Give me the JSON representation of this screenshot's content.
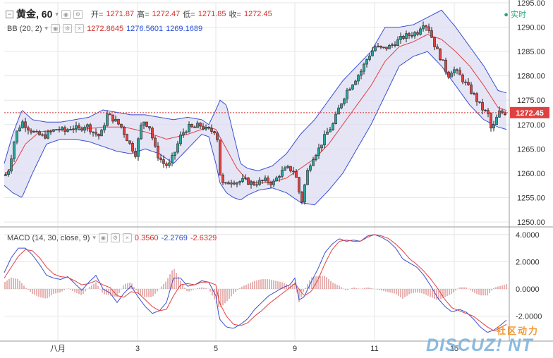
{
  "header": {
    "collapse_icon": "minus-box-icon",
    "symbol": "黄金, 60",
    "open_label": "开=",
    "open_value": "1271.87",
    "high_label": "高=",
    "high_value": "1272.47",
    "low_label": "低=",
    "low_value": "1271.85",
    "close_label": "收=",
    "close_value": "1272.45",
    "realtime": "实时"
  },
  "bb": {
    "label": "BB (20, 2)",
    "mid": "1272.8645",
    "upper": "1276.5601",
    "lower": "1269.1689"
  },
  "macd": {
    "label": "MACD (14, 30, close, 9)",
    "hist": "0.3560",
    "macd": "-2.2769",
    "signal": "-2.6329"
  },
  "price_tag": "1272.45",
  "watermark": {
    "cn": "社区动力",
    "en": "DISCUZ! NT"
  },
  "colors": {
    "up": "#26a69a",
    "down": "#e04040",
    "candle": "#222222",
    "band_fill": "#dcdcf3",
    "band_line": "#3a4fd0",
    "mid_line": "#e04040",
    "macd_line": "#3a4fd0",
    "signal_line": "#e04040",
    "hist": "#d98080",
    "grid": "#e6e6e6"
  },
  "chart_data": [
    {
      "type": "candlestick",
      "title": "黄金, 60",
      "ylim": [
        1250,
        1295
      ],
      "yticks": [
        1250,
        1255,
        1260,
        1265,
        1270,
        1275,
        1280,
        1285,
        1290,
        1295
      ],
      "ytick_labels": [
        "1250.00",
        "1255.00",
        "1260.00",
        "1265.00",
        "1270.00",
        "1275.00",
        "1280.00",
        "1285.00",
        "1290.00",
        "1295.00"
      ],
      "xtick_labels": [
        "八月",
        "3",
        "5",
        "9",
        "11",
        "15"
      ],
      "last_price": 1272.45,
      "series": [
        {
          "name": "close_keypoints",
          "x": [
            0,
            6,
            12,
            18,
            25,
            35,
            45,
            55,
            65,
            75,
            85,
            95,
            105,
            115,
            125,
            135,
            145,
            155,
            165,
            175,
            185,
            195,
            205,
            215,
            225,
            232,
            240,
            250,
            260,
            268,
            275,
            285,
            295,
            300,
            306,
            312,
            320,
            330,
            340,
            350,
            360,
            370,
            380,
            390,
            400,
            410,
            415,
            420,
            428,
            435,
            445,
            455,
            465,
            475,
            485,
            495,
            505,
            515,
            525,
            535,
            545,
            555,
            565,
            575,
            585,
            592,
            600,
            610,
            620,
            628,
            635,
            645,
            655,
            665,
            675,
            685,
            690,
            700,
            712
          ],
          "values": [
            1259.5,
            1261,
            1266,
            1269,
            1270.5,
            1269,
            1268,
            1267.5,
            1268.5,
            1269.2,
            1268.6,
            1269.5,
            1269,
            1270,
            1268.5,
            1267.5,
            1272,
            1271,
            1269.5,
            1266.5,
            1264,
            1271,
            1269.5,
            1264,
            1262,
            1261.5,
            1264,
            1268,
            1269.5,
            1269.2,
            1270,
            1269,
            1268.6,
            1269,
            1258,
            1257.5,
            1258.5,
            1258.2,
            1258.6,
            1257.8,
            1258.2,
            1258.5,
            1257.9,
            1260,
            1261,
            1260.5,
            1258,
            1253.5,
            1260,
            1263,
            1265,
            1268,
            1270,
            1274,
            1277,
            1279,
            1281,
            1284,
            1286,
            1285.5,
            1286,
            1287,
            1288,
            1288.5,
            1289,
            1291,
            1290,
            1286,
            1283,
            1280,
            1281.5,
            1280,
            1278,
            1276,
            1273.5,
            1272,
            1268.5,
            1272.5,
            1272.45
          ]
        },
        {
          "name": "BB upper",
          "x": [
            0,
            12,
            25,
            40,
            60,
            80,
            100,
            120,
            140,
            160,
            180,
            200,
            220,
            240,
            260,
            280,
            290,
            300,
            306,
            315,
            325,
            335,
            345,
            360,
            380,
            400,
            420,
            440,
            460,
            480,
            500,
            520,
            540,
            560,
            580,
            600,
            620,
            640,
            660,
            680,
            700,
            712
          ],
          "values": [
            1262,
            1268,
            1273,
            1271,
            1270.5,
            1270.5,
            1271,
            1271.5,
            1273,
            1272.5,
            1272,
            1272,
            1271.5,
            1271,
            1271.5,
            1271,
            1270,
            1273,
            1275,
            1274,
            1268,
            1262,
            1261,
            1260.5,
            1261.5,
            1264,
            1268,
            1271,
            1275,
            1279,
            1282,
            1285,
            1290,
            1290,
            1290.5,
            1292,
            1293.5,
            1290,
            1286,
            1282,
            1277,
            1276.5
          ]
        },
        {
          "name": "BB lower",
          "x": [
            0,
            12,
            25,
            40,
            60,
            80,
            100,
            120,
            140,
            160,
            180,
            200,
            220,
            240,
            260,
            280,
            290,
            300,
            306,
            315,
            325,
            335,
            345,
            360,
            380,
            400,
            420,
            440,
            460,
            480,
            500,
            520,
            540,
            560,
            580,
            600,
            620,
            640,
            660,
            680,
            700,
            712
          ],
          "values": [
            1257.5,
            1256,
            1255,
            1260,
            1266,
            1267,
            1267,
            1266.5,
            1265.5,
            1264.5,
            1264,
            1265,
            1264,
            1262,
            1265,
            1268,
            1267.5,
            1262,
            1258,
            1256,
            1255,
            1254.5,
            1255.5,
            1256.5,
            1257,
            1256,
            1254,
            1253.5,
            1256.5,
            1260,
            1265,
            1270,
            1276,
            1282,
            1284,
            1285,
            1282,
            1278,
            1274,
            1271,
            1269.5,
            1269
          ]
        },
        {
          "name": "BB mid",
          "x": [
            0,
            15,
            30,
            50,
            80,
            110,
            140,
            170,
            200,
            230,
            260,
            290,
            300,
            315,
            330,
            345,
            360,
            380,
            400,
            420,
            440,
            460,
            480,
            500,
            520,
            540,
            560,
            580,
            600,
            620,
            640,
            660,
            680,
            700,
            712
          ],
          "values": [
            1259.5,
            1262,
            1266,
            1268.5,
            1269,
            1269,
            1269.5,
            1269.5,
            1268.5,
            1267,
            1268,
            1269.5,
            1269,
            1265,
            1261,
            1258.5,
            1258,
            1258.2,
            1259,
            1261,
            1263,
            1266,
            1270,
            1274,
            1278,
            1283,
            1286,
            1287,
            1288.5,
            1287.5,
            1285,
            1282,
            1278,
            1273.5,
            1272.9
          ]
        }
      ]
    },
    {
      "type": "line",
      "title": "MACD (14, 30, close, 9)",
      "ylim": [
        -4,
        4.2
      ],
      "yticks": [
        -2,
        0,
        2,
        4
      ],
      "ytick_labels": [
        "-2.0000",
        "0.0000",
        "2.0000",
        "4.0000"
      ],
      "series": [
        {
          "name": "MACD",
          "x": [
            0,
            10,
            20,
            30,
            40,
            50,
            60,
            70,
            80,
            90,
            100,
            110,
            120,
            130,
            140,
            150,
            160,
            170,
            180,
            190,
            200,
            210,
            220,
            230,
            240,
            250,
            260,
            270,
            280,
            290,
            300,
            305,
            315,
            325,
            335,
            345,
            355,
            365,
            375,
            385,
            395,
            405,
            412,
            418,
            425,
            435,
            445,
            455,
            465,
            475,
            485,
            495,
            505,
            515,
            525,
            535,
            545,
            555,
            565,
            575,
            585,
            595,
            605,
            615,
            625,
            635,
            645,
            655,
            665,
            675,
            685,
            695,
            705,
            712
          ],
          "values": [
            1.2,
            2.3,
            3,
            3,
            2.5,
            1.8,
            1,
            0.8,
            0.7,
            0.9,
            0.4,
            -0.1,
            0.5,
            1,
            0,
            -0.3,
            -1,
            -0.3,
            0.2,
            -0.6,
            -1.3,
            -1.8,
            -1.6,
            -1,
            0.8,
            0.8,
            0.2,
            0.3,
            0.6,
            0.5,
            -0.5,
            -2.2,
            -2.8,
            -2.9,
            -2.6,
            -2.2,
            -1.5,
            -1,
            -0.5,
            -0.2,
            0.1,
            0.3,
            0.8,
            -0.8,
            -0.6,
            0.5,
            1.5,
            2.7,
            3.3,
            3.7,
            3.5,
            3.6,
            3.5,
            3.9,
            4,
            3.8,
            3.5,
            3,
            2.2,
            1.9,
            1.6,
            1,
            0.2,
            -0.7,
            -1.3,
            -1.7,
            -1.5,
            -1.7,
            -2.2,
            -2.8,
            -3.2,
            -3,
            -2.6,
            -2.3
          ]
        },
        {
          "name": "Signal",
          "x": [
            0,
            10,
            20,
            30,
            40,
            50,
            60,
            70,
            80,
            90,
            100,
            110,
            120,
            130,
            140,
            150,
            160,
            170,
            180,
            190,
            200,
            210,
            220,
            230,
            240,
            250,
            260,
            270,
            280,
            290,
            300,
            305,
            315,
            325,
            335,
            345,
            355,
            365,
            375,
            385,
            395,
            405,
            412,
            418,
            425,
            435,
            445,
            455,
            465,
            475,
            485,
            495,
            505,
            515,
            525,
            535,
            545,
            555,
            565,
            575,
            585,
            595,
            605,
            615,
            625,
            635,
            645,
            655,
            665,
            675,
            685,
            695,
            705,
            712
          ],
          "values": [
            0.8,
            1.6,
            2.4,
            2.9,
            2.8,
            2.3,
            1.6,
            1.1,
            0.9,
            0.85,
            0.6,
            0.3,
            0.4,
            0.6,
            0.3,
            0.1,
            -0.5,
            -0.6,
            -0.2,
            -0.3,
            -0.8,
            -1.3,
            -1.6,
            -1.5,
            -0.5,
            0.3,
            0.4,
            0.3,
            0.5,
            0.5,
            0.3,
            -1,
            -2,
            -2.6,
            -2.7,
            -2.5,
            -2,
            -1.6,
            -1.1,
            -0.7,
            -0.3,
            0.1,
            0.4,
            0,
            -0.5,
            -0.2,
            0.7,
            1.9,
            2.9,
            3.5,
            3.6,
            3.5,
            3.5,
            3.8,
            4,
            3.9,
            3.7,
            3.3,
            2.8,
            2.2,
            1.8,
            1.3,
            0.7,
            0,
            -0.8,
            -1.4,
            -1.6,
            -1.8,
            -2,
            -2.4,
            -2.8,
            -3.1,
            -2.8,
            -2.6
          ]
        }
      ]
    }
  ]
}
